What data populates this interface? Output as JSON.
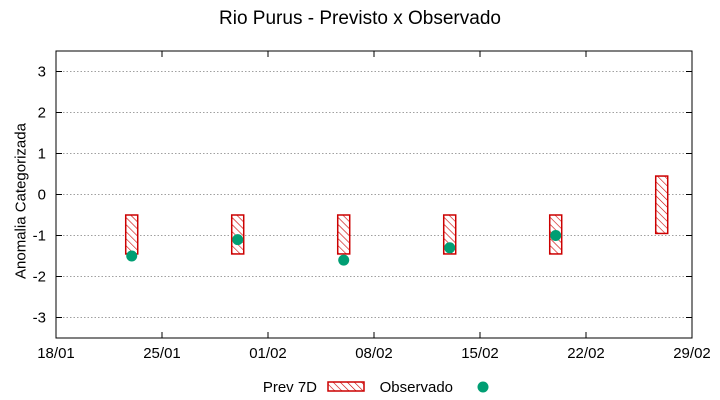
{
  "chart_data": {
    "type": "range-bar-and-scatter",
    "title": "Rio Purus - Previsto x Observado",
    "xlabel": "",
    "ylabel": "Anomalia Categorizada",
    "ylim": [
      -3.5,
      3.5
    ],
    "yticks": [
      -3,
      -2,
      -1,
      0,
      1,
      2,
      3
    ],
    "xlim": [
      "18/01",
      "29/02"
    ],
    "xticks": [
      "18/01",
      "25/01",
      "01/02",
      "08/02",
      "15/02",
      "22/02",
      "29/02"
    ],
    "grid": "horizontal dotted",
    "legend_placement": "bottom-center",
    "series": [
      {
        "name": "Prev 7D",
        "kind": "range",
        "color": "#cc0000",
        "points": [
          {
            "x": "23/01",
            "low": -1.45,
            "high": -0.5
          },
          {
            "x": "30/01",
            "low": -1.45,
            "high": -0.5
          },
          {
            "x": "06/02",
            "low": -1.45,
            "high": -0.5
          },
          {
            "x": "13/02",
            "low": -1.45,
            "high": -0.5
          },
          {
            "x": "20/02",
            "low": -1.45,
            "high": -0.5
          },
          {
            "x": "27/02",
            "low": -0.95,
            "high": 0.45
          }
        ]
      },
      {
        "name": "Observado",
        "kind": "point",
        "color": "#009e73",
        "points": [
          {
            "x": "23/01",
            "y": -1.5
          },
          {
            "x": "30/01",
            "y": -1.1
          },
          {
            "x": "06/02",
            "y": -1.6
          },
          {
            "x": "13/02",
            "y": -1.3
          },
          {
            "x": "20/02",
            "y": -1.0
          }
        ]
      }
    ]
  }
}
